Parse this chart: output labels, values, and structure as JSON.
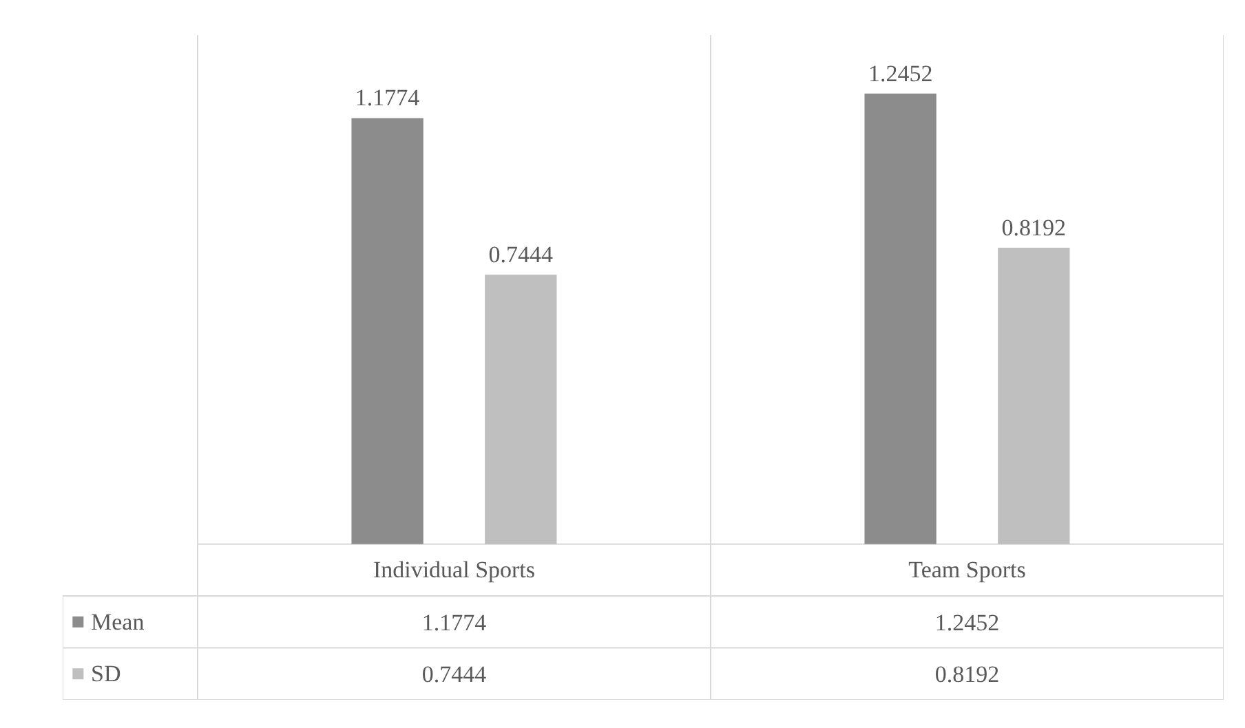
{
  "chart_data": {
    "type": "bar",
    "categories": [
      "Individual Sports",
      "Team Sports"
    ],
    "series": [
      {
        "name": "Mean",
        "color": "#8c8c8c",
        "values": [
          1.1774,
          1.2452
        ],
        "value_labels": [
          "1.1774",
          "1.2452"
        ]
      },
      {
        "name": "SD",
        "color": "#bfbfbf",
        "values": [
          0.7444,
          0.8192
        ],
        "value_labels": [
          "0.7444",
          "0.8192"
        ]
      }
    ],
    "annotations": [
      "1.1774",
      "1.2452",
      "0.7444",
      "0.8192"
    ],
    "legend": "bottom left"
  }
}
